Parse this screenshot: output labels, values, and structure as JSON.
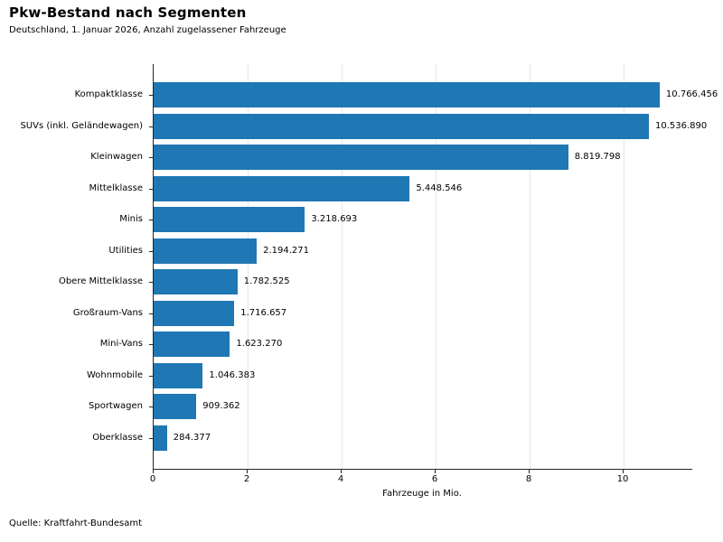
{
  "header": {
    "title": "Pkw-Bestand nach Segmenten",
    "subtitle": "Deutschland, 1. Januar 2026, Anzahl zugelassener Fahrzeuge"
  },
  "footer": {
    "source": "Quelle: Kraftfahrt-Bundesamt"
  },
  "chart_data": {
    "type": "bar",
    "orientation": "horizontal",
    "title": "Pkw-Bestand nach Segmenten",
    "subtitle": "Deutschland, 1. Januar 2026, Anzahl zugelassener Fahrzeuge",
    "categories": [
      "Kompaktklasse",
      "SUVs (inkl. Geländewagen)",
      "Kleinwagen",
      "Mittelklasse",
      "Minis",
      "Utilities",
      "Obere Mittelklasse",
      "Großraum-Vans",
      "Mini-Vans",
      "Wohnmobile",
      "Sportwagen",
      "Oberklasse"
    ],
    "values": [
      10766456,
      10536890,
      8819798,
      5448546,
      3218693,
      2194271,
      1782525,
      1716657,
      1623270,
      1046383,
      909362,
      284377
    ],
    "value_labels": [
      "10.766.456",
      "10.536.890",
      "8.819.798",
      "5.448.546",
      "3.218.693",
      "2.194.271",
      "1.782.525",
      "1.716.657",
      "1.623.270",
      "1.046.383",
      "909.362",
      "284.377"
    ],
    "xlabel": "Fahrzeuge in Mio.",
    "xticks": [
      0,
      2,
      4,
      6,
      8,
      10
    ],
    "xlim": [
      0,
      11.46
    ],
    "grid": "vertical",
    "legend": "none",
    "bar_color": "#1f77b4",
    "grid_color": "#e7e7e7",
    "axis_color": "#262626",
    "source": "Quelle: Kraftfahrt-Bundesamt"
  }
}
